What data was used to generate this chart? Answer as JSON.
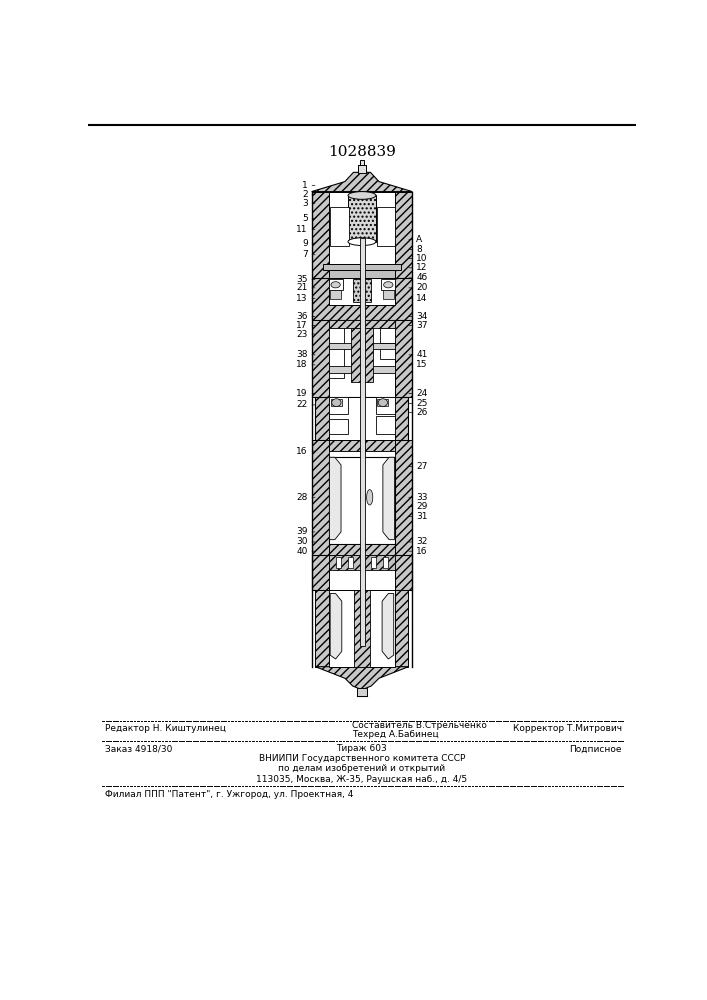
{
  "patent_number": "1028839",
  "bg": "#ffffff",
  "title_fontsize": 11,
  "small_fontsize": 6.5,
  "footer_lines": {
    "left": "Редактор Н. Киштулинец",
    "center_top": "Составитель В.Стрельченко",
    "center_bottom": "Техред А.Бабинец",
    "right": "Корректор Т.Митрович"
  },
  "info_line": {
    "left": "Заказ 4918/30",
    "center": "Тираж 603",
    "right": "Подписное"
  },
  "vniipi_lines": [
    "ВНИИПИ Государственного комитета СССР",
    "по делам изобретений и открытий",
    "113035, Москва, Ж-35, Раушская наб., д. 4/5"
  ],
  "filial_line": "Филиал ППП \"Патент\", г. Ужгород, ул. Проектная, 4",
  "labels_left": [
    [
      "1",
      85
    ],
    [
      "2",
      97
    ],
    [
      "3",
      108
    ],
    [
      "5",
      128
    ],
    [
      "11",
      142
    ],
    [
      "9",
      160
    ],
    [
      "7",
      175
    ],
    [
      "35",
      207
    ],
    [
      "21",
      218
    ],
    [
      "13",
      232
    ],
    [
      "36",
      255
    ],
    [
      "17",
      267
    ],
    [
      "23",
      278
    ],
    [
      "38",
      305
    ],
    [
      "18",
      318
    ],
    [
      "19",
      355
    ],
    [
      "22",
      370
    ],
    [
      "16",
      430
    ],
    [
      "28",
      490
    ],
    [
      "39",
      535
    ],
    [
      "30",
      548
    ],
    [
      "40",
      560
    ]
  ],
  "labels_right": [
    [
      "A",
      155
    ],
    [
      "8",
      168
    ],
    [
      "10",
      180
    ],
    [
      "12",
      192
    ],
    [
      "4б",
      205
    ],
    [
      "20",
      218
    ],
    [
      "14",
      232
    ],
    [
      "34",
      255
    ],
    [
      "37",
      267
    ],
    [
      "41",
      305
    ],
    [
      "15",
      318
    ],
    [
      "24",
      355
    ],
    [
      "25",
      368
    ],
    [
      "26",
      380
    ],
    [
      "27",
      450
    ],
    [
      "33",
      490
    ],
    [
      "29",
      502
    ],
    [
      "31",
      515
    ],
    [
      "32",
      548
    ],
    [
      "16",
      560
    ]
  ]
}
